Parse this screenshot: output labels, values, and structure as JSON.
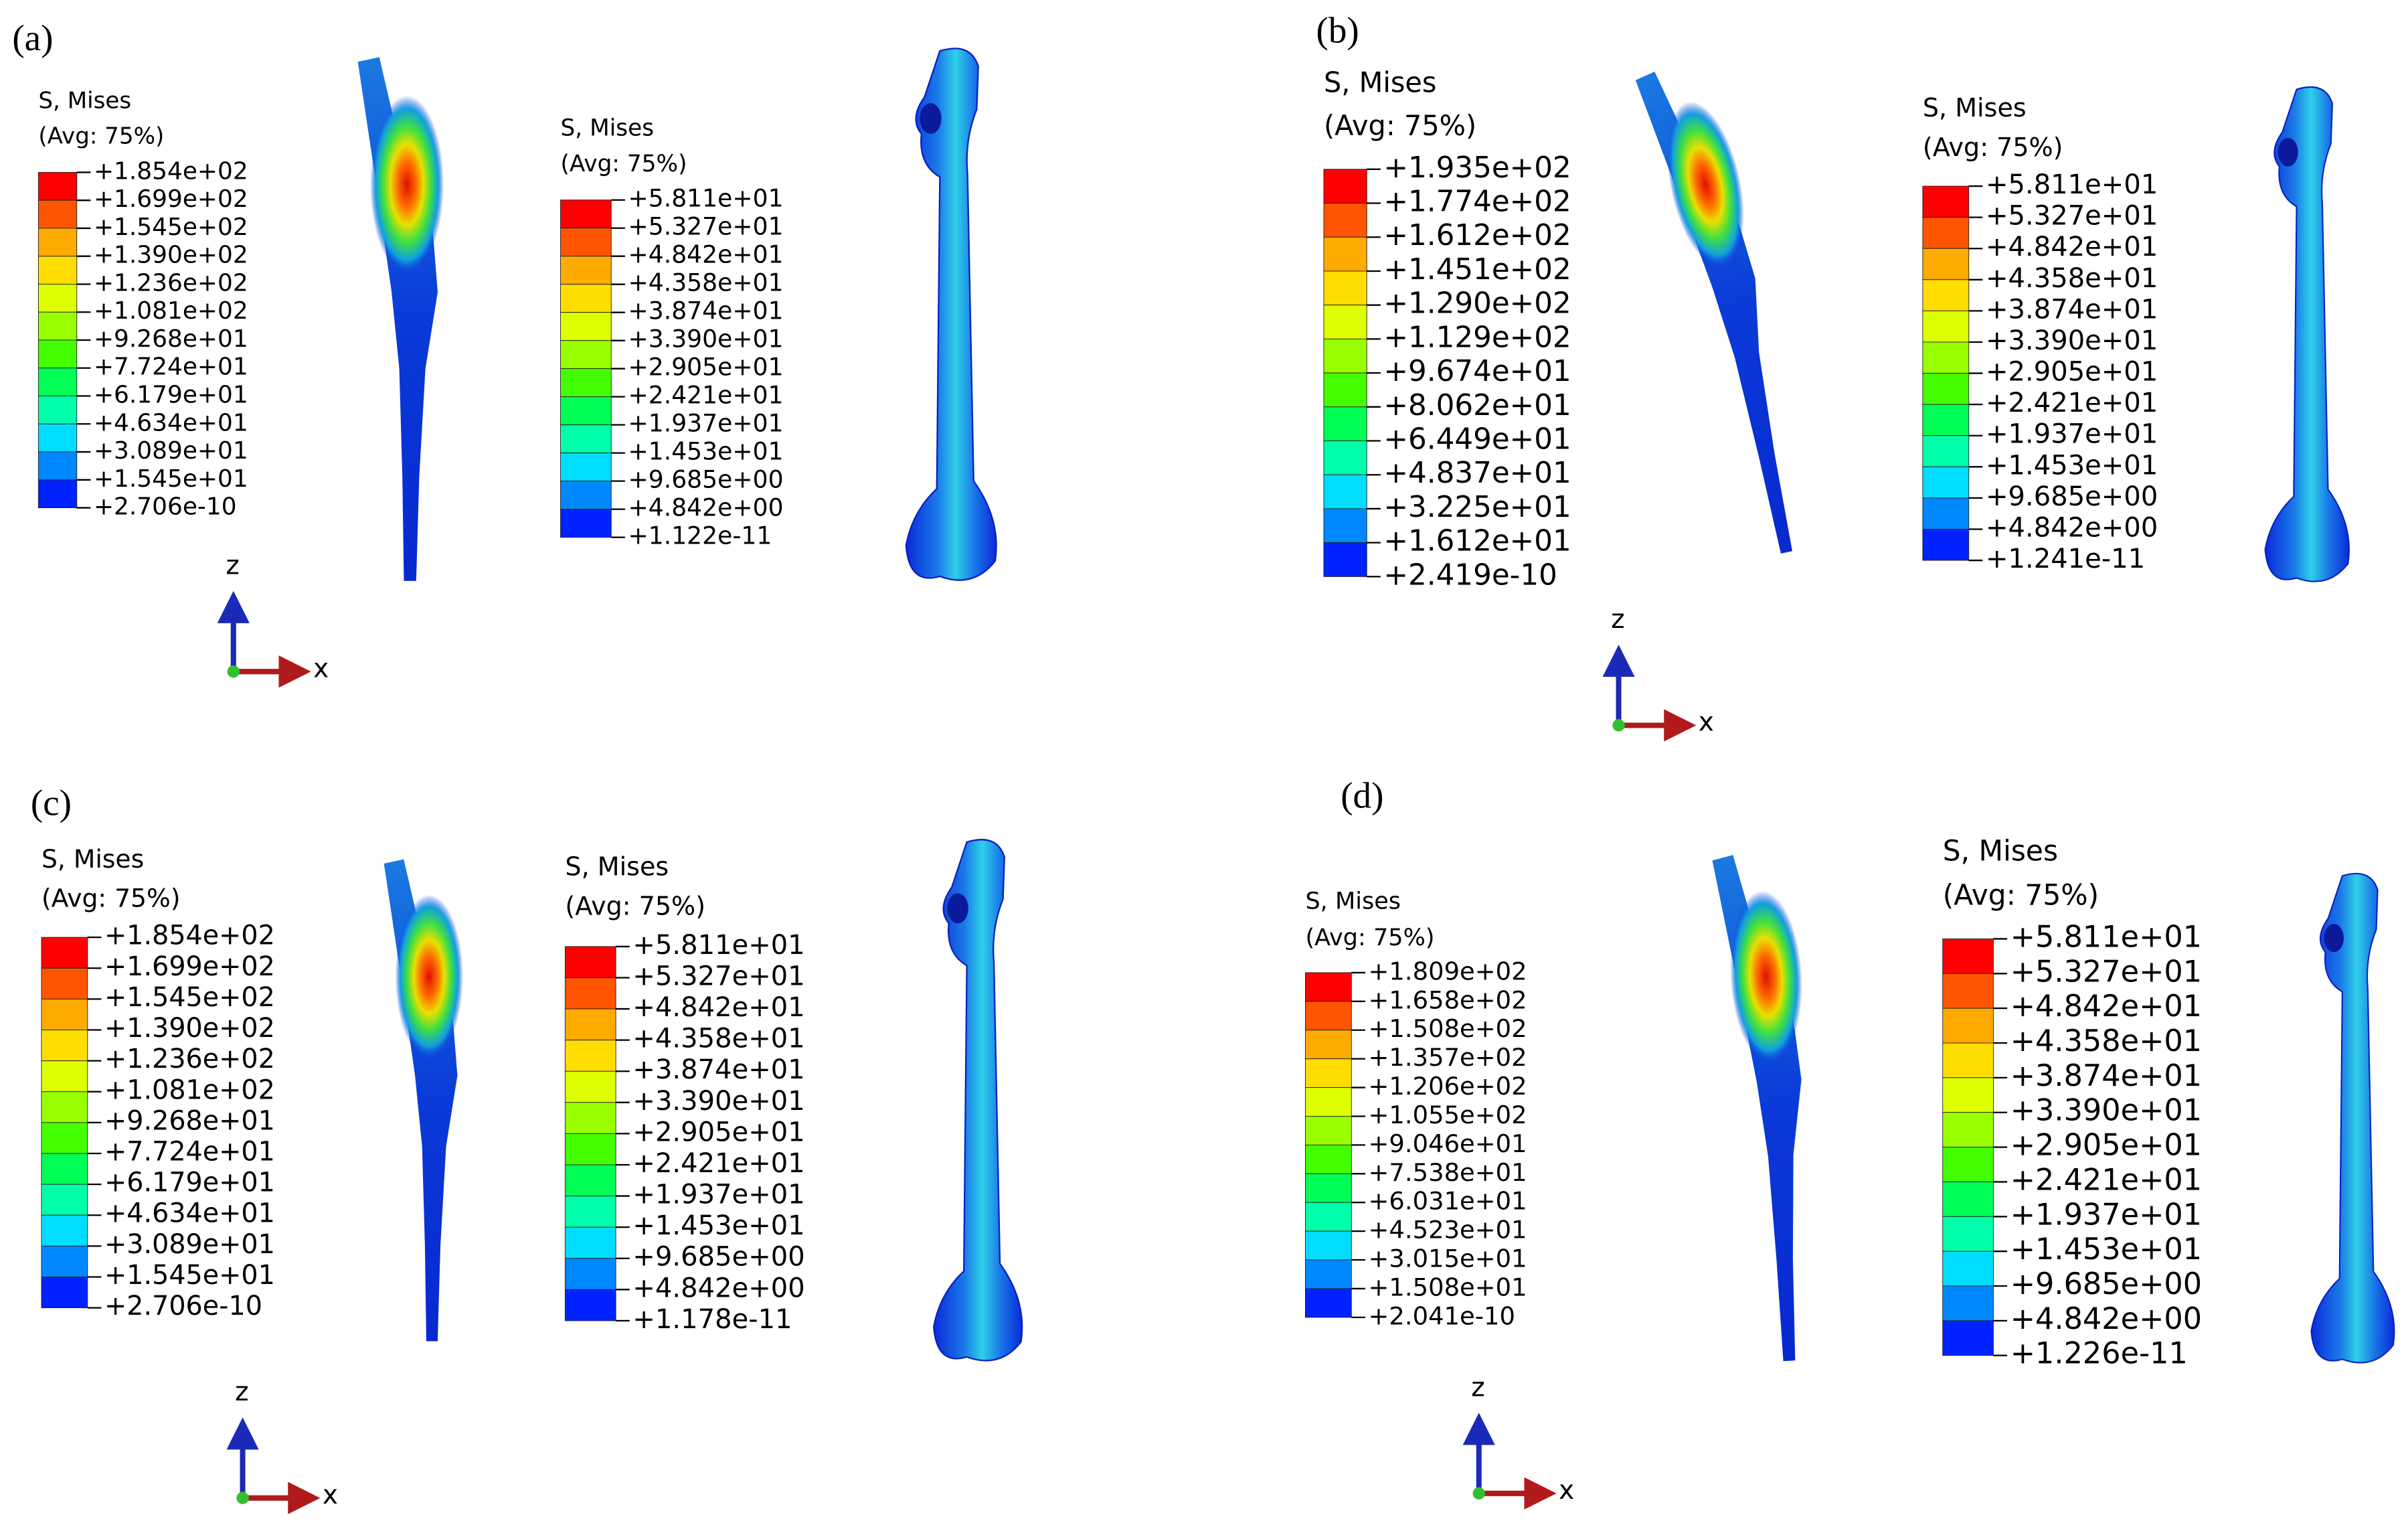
{
  "panels": [
    {
      "label": "(a)",
      "legends": [
        {
          "title": "S, Mises",
          "subtitle": "(Avg: 75%)",
          "labels": [
            "+1.854e+02",
            "+1.699e+02",
            "+1.545e+02",
            "+1.390e+02",
            "+1.236e+02",
            "+1.081e+02",
            "+9.268e+01",
            "+7.724e+01",
            "+6.179e+01",
            "+4.634e+01",
            "+3.089e+01",
            "+1.545e+01",
            "+2.706e-10"
          ]
        },
        {
          "title": "S, Mises",
          "subtitle": "(Avg: 75%)",
          "labels": [
            "+5.811e+01",
            "+5.327e+01",
            "+4.842e+01",
            "+4.358e+01",
            "+3.874e+01",
            "+3.390e+01",
            "+2.905e+01",
            "+2.421e+01",
            "+1.937e+01",
            "+1.453e+01",
            "+9.685e+00",
            "+4.842e+00",
            "+1.122e-11"
          ]
        }
      ],
      "axes": {
        "z": "z",
        "x": "x"
      }
    },
    {
      "label": "(b)",
      "legends": [
        {
          "title": "S, Mises",
          "subtitle": "(Avg: 75%)",
          "labels": [
            "+1.935e+02",
            "+1.774e+02",
            "+1.612e+02",
            "+1.451e+02",
            "+1.290e+02",
            "+1.129e+02",
            "+9.674e+01",
            "+8.062e+01",
            "+6.449e+01",
            "+4.837e+01",
            "+3.225e+01",
            "+1.612e+01",
            "+2.419e-10"
          ]
        },
        {
          "title": "S, Mises",
          "subtitle": "(Avg: 75%)",
          "labels": [
            "+5.811e+01",
            "+5.327e+01",
            "+4.842e+01",
            "+4.358e+01",
            "+3.874e+01",
            "+3.390e+01",
            "+2.905e+01",
            "+2.421e+01",
            "+1.937e+01",
            "+1.453e+01",
            "+9.685e+00",
            "+4.842e+00",
            "+1.241e-11"
          ]
        }
      ],
      "axes": {
        "z": "z",
        "x": "x"
      }
    },
    {
      "label": "(c)",
      "legends": [
        {
          "title": "S, Mises",
          "subtitle": "(Avg: 75%)",
          "labels": [
            "+1.854e+02",
            "+1.699e+02",
            "+1.545e+02",
            "+1.390e+02",
            "+1.236e+02",
            "+1.081e+02",
            "+9.268e+01",
            "+7.724e+01",
            "+6.179e+01",
            "+4.634e+01",
            "+3.089e+01",
            "+1.545e+01",
            "+2.706e-10"
          ]
        },
        {
          "title": "S, Mises",
          "subtitle": "(Avg: 75%)",
          "labels": [
            "+5.811e+01",
            "+5.327e+01",
            "+4.842e+01",
            "+4.358e+01",
            "+3.874e+01",
            "+3.390e+01",
            "+2.905e+01",
            "+2.421e+01",
            "+1.937e+01",
            "+1.453e+01",
            "+9.685e+00",
            "+4.842e+00",
            "+1.178e-11"
          ]
        }
      ],
      "axes": {
        "z": "z",
        "x": "x"
      }
    },
    {
      "label": "(d)",
      "legends": [
        {
          "title": "S, Mises",
          "subtitle": "(Avg: 75%)",
          "labels": [
            "+1.809e+02",
            "+1.658e+02",
            "+1.508e+02",
            "+1.357e+02",
            "+1.206e+02",
            "+1.055e+02",
            "+9.046e+01",
            "+7.538e+01",
            "+6.031e+01",
            "+4.523e+01",
            "+3.015e+01",
            "+1.508e+01",
            "+2.041e-10"
          ]
        },
        {
          "title": "S, Mises",
          "subtitle": "(Avg: 75%)",
          "labels": [
            "+5.811e+01",
            "+5.327e+01",
            "+4.842e+01",
            "+4.358e+01",
            "+3.874e+01",
            "+3.390e+01",
            "+2.905e+01",
            "+2.421e+01",
            "+1.937e+01",
            "+1.453e+01",
            "+9.685e+00",
            "+4.842e+00",
            "+1.226e-11"
          ]
        }
      ],
      "axes": {
        "z": "z",
        "x": "x"
      }
    }
  ]
}
